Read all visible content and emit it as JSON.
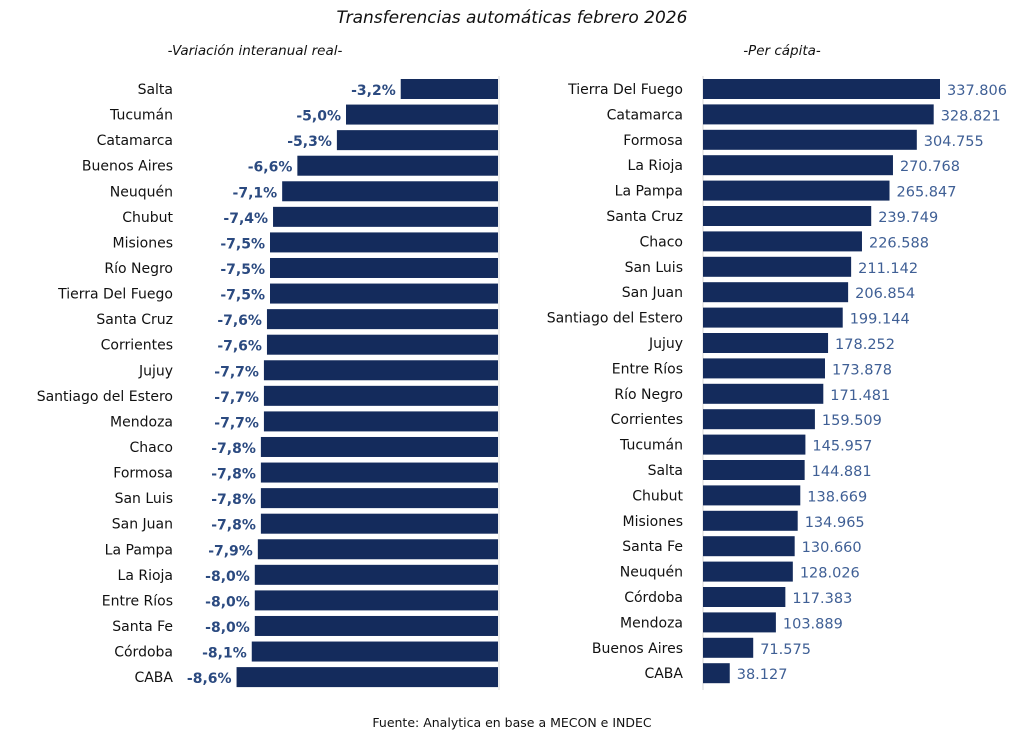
{
  "title": "Transferencias automáticas febrero 2026",
  "source": "Fuente: Analytica en base a MECON e INDEC",
  "colors": {
    "bar": "#142b5c",
    "left_label": "#2b4a80",
    "right_label": "#3f5f95"
  },
  "chart_data": [
    {
      "type": "bar",
      "orientation": "horizontal",
      "subtitle": "-Variación interanual real-",
      "categories": [
        "Salta",
        "Tucumán",
        "Catamarca",
        "Buenos Aires",
        "Neuquén",
        "Chubut",
        "Misiones",
        "Río Negro",
        "Tierra Del Fuego",
        "Santa Cruz",
        "Corrientes",
        "Jujuy",
        "Santiago del Estero",
        "Mendoza",
        "Chaco",
        "Formosa",
        "San Luis",
        "San Juan",
        "La Pampa",
        "La Rioja",
        "Entre Ríos",
        "Santa Fe",
        "Córdoba",
        "CABA"
      ],
      "values": [
        -3.2,
        -5.0,
        -5.3,
        -6.6,
        -7.1,
        -7.4,
        -7.5,
        -7.5,
        -7.5,
        -7.6,
        -7.6,
        -7.7,
        -7.7,
        -7.7,
        -7.8,
        -7.8,
        -7.8,
        -7.8,
        -7.9,
        -8.0,
        -8.0,
        -8.0,
        -8.1,
        -8.6
      ],
      "labels": [
        "-3,2%",
        "-5,0%",
        "-5,3%",
        "-6,6%",
        "-7,1%",
        "-7,4%",
        "-7,5%",
        "-7,5%",
        "-7,5%",
        "-7,6%",
        "-7,6%",
        "-7,7%",
        "-7,7%",
        "-7,7%",
        "-7,8%",
        "-7,8%",
        "-7,8%",
        "-7,8%",
        "-7,9%",
        "-8,0%",
        "-8,0%",
        "-8,0%",
        "-8,1%",
        "-8,6%"
      ],
      "grid": false
    },
    {
      "type": "bar",
      "orientation": "horizontal",
      "subtitle": "-Per cápita-",
      "categories": [
        "Tierra Del Fuego",
        "Catamarca",
        "Formosa",
        "La Rioja",
        "La Pampa",
        "Santa Cruz",
        "Chaco",
        "San Luis",
        "San Juan",
        "Santiago del Estero",
        "Jujuy",
        "Entre Ríos",
        "Río Negro",
        "Corrientes",
        "Tucumán",
        "Salta",
        "Chubut",
        "Misiones",
        "Santa Fe",
        "Neuquén",
        "Córdoba",
        "Mendoza",
        "Buenos Aires",
        "CABA"
      ],
      "values": [
        337806,
        328821,
        304755,
        270768,
        265847,
        239749,
        226588,
        211142,
        206854,
        199144,
        178252,
        173878,
        171481,
        159509,
        145957,
        144881,
        138669,
        134965,
        130660,
        128026,
        117383,
        103889,
        71575,
        38127
      ],
      "labels": [
        "337.806",
        "328.821",
        "304.755",
        "270.768",
        "265.847",
        "239.749",
        "226.588",
        "211.142",
        "206.854",
        "199.144",
        "178.252",
        "173.878",
        "171.481",
        "159.509",
        "145.957",
        "144.881",
        "138.669",
        "134.965",
        "130.660",
        "128.026",
        "117.383",
        "103.889",
        "71.575",
        "38.127"
      ],
      "grid": false
    }
  ]
}
